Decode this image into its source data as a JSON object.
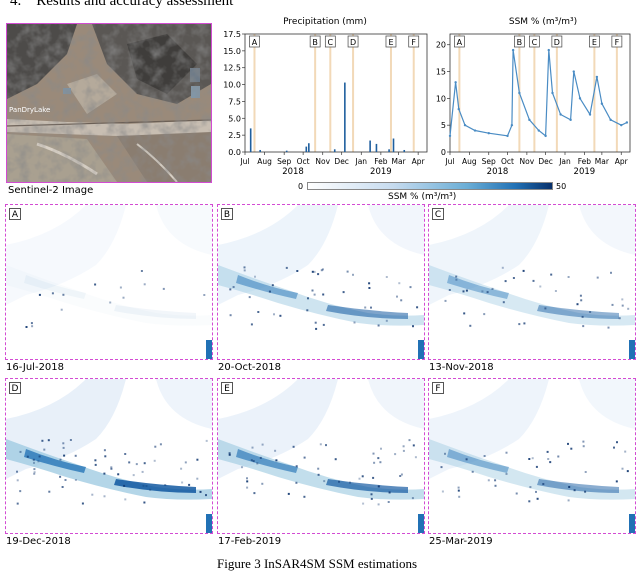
{
  "section": {
    "number": "4.",
    "title": "Results and accuracy assessment"
  },
  "sentinel": {
    "label": "Sentinel-2 Image",
    "place_label": "PanDryLake"
  },
  "precip_chart": {
    "title": "Precipitation (mm)",
    "y_ticks": [
      "0.0",
      "2.5",
      "5.0",
      "7.5",
      "10.0",
      "12.5",
      "15.0",
      "17.5"
    ],
    "x_ticks": [
      "Jul",
      "Aug",
      "Sep",
      "Oct",
      "Nov",
      "Dec",
      "Jan",
      "Feb",
      "Mar",
      "Apr"
    ],
    "year_left": "2018",
    "year_right": "2019"
  },
  "ssm_chart": {
    "title": "SSM % (m³/m³)",
    "y_ticks": [
      "0",
      "5",
      "10",
      "15",
      "20"
    ],
    "x_ticks": [
      "Jul",
      "Aug",
      "Sep",
      "Oct",
      "Nov",
      "Dec",
      "Jan",
      "Feb",
      "Mar",
      "Apr"
    ],
    "year_left": "2018",
    "year_right": "2019"
  },
  "colorbar": {
    "min_label": "0",
    "max_label": "50",
    "title": "SSM % (m³/m³)",
    "low_color": "#ffffff",
    "high_color": "#08306b"
  },
  "marker_labels": [
    "A",
    "B",
    "C",
    "D",
    "E",
    "F"
  ],
  "chart_data": [
    {
      "type": "bar",
      "title": "Precipitation (mm)",
      "x_start": "2018-07-01",
      "x_end": "2019-04-15",
      "ylim": [
        0,
        17.5
      ],
      "series": [
        {
          "values": [
            {
              "date": "2018-07-10",
              "value": 3.5
            },
            {
              "date": "2018-07-25",
              "value": 0.3
            },
            {
              "date": "2018-09-05",
              "value": 0.2
            },
            {
              "date": "2018-10-06",
              "value": 0.8
            },
            {
              "date": "2018-10-10",
              "value": 1.3
            },
            {
              "date": "2018-11-20",
              "value": 0.4
            },
            {
              "date": "2018-12-06",
              "value": 10.3
            },
            {
              "date": "2019-01-15",
              "value": 1.7
            },
            {
              "date": "2019-01-25",
              "value": 1.2
            },
            {
              "date": "2019-02-14",
              "value": 0.4
            },
            {
              "date": "2019-02-21",
              "value": 2.0
            },
            {
              "date": "2019-03-10",
              "value": 0.3
            }
          ]
        }
      ],
      "events": [
        {
          "label": "A",
          "date": "2018-07-16"
        },
        {
          "label": "B",
          "date": "2018-10-20"
        },
        {
          "label": "C",
          "date": "2018-11-13"
        },
        {
          "label": "D",
          "date": "2018-12-19"
        },
        {
          "label": "E",
          "date": "2019-02-17"
        },
        {
          "label": "F",
          "date": "2019-03-25"
        }
      ]
    },
    {
      "type": "line",
      "title": "SSM % (m³/m³)",
      "x_start": "2018-07-01",
      "x_end": "2019-04-15",
      "ylim": [
        0,
        22
      ],
      "series": [
        {
          "points": [
            {
              "date": "2018-07-01",
              "value": 3
            },
            {
              "date": "2018-07-10",
              "value": 13
            },
            {
              "date": "2018-07-15",
              "value": 8
            },
            {
              "date": "2018-07-25",
              "value": 5
            },
            {
              "date": "2018-08-10",
              "value": 4
            },
            {
              "date": "2018-09-01",
              "value": 3.5
            },
            {
              "date": "2018-10-01",
              "value": 3
            },
            {
              "date": "2018-10-08",
              "value": 5
            },
            {
              "date": "2018-10-10",
              "value": 19
            },
            {
              "date": "2018-10-20",
              "value": 11
            },
            {
              "date": "2018-11-05",
              "value": 6
            },
            {
              "date": "2018-11-20",
              "value": 4
            },
            {
              "date": "2018-12-01",
              "value": 3
            },
            {
              "date": "2018-12-06",
              "value": 19
            },
            {
              "date": "2018-12-12",
              "value": 11
            },
            {
              "date": "2018-12-25",
              "value": 7
            },
            {
              "date": "2019-01-10",
              "value": 6
            },
            {
              "date": "2019-01-15",
              "value": 15
            },
            {
              "date": "2019-01-25",
              "value": 10
            },
            {
              "date": "2019-02-10",
              "value": 7
            },
            {
              "date": "2019-02-21",
              "value": 14
            },
            {
              "date": "2019-03-01",
              "value": 9
            },
            {
              "date": "2019-03-15",
              "value": 6
            },
            {
              "date": "2019-04-01",
              "value": 5
            },
            {
              "date": "2019-04-10",
              "value": 5.5
            }
          ]
        }
      ],
      "events": [
        {
          "label": "A",
          "date": "2018-07-16"
        },
        {
          "label": "B",
          "date": "2018-10-20"
        },
        {
          "label": "C",
          "date": "2018-11-13"
        },
        {
          "label": "D",
          "date": "2018-12-19"
        },
        {
          "label": "E",
          "date": "2019-02-17"
        },
        {
          "label": "F",
          "date": "2019-03-25"
        }
      ]
    }
  ],
  "panels": [
    {
      "tag": "A",
      "date": "16-Jul-2018",
      "wetness": 0.05
    },
    {
      "tag": "B",
      "date": "20-Oct-2018",
      "wetness": 0.55
    },
    {
      "tag": "C",
      "date": "13-Nov-2018",
      "wetness": 0.45
    },
    {
      "tag": "D",
      "date": "19-Dec-2018",
      "wetness": 0.85
    },
    {
      "tag": "E",
      "date": "17-Feb-2019",
      "wetness": 0.7
    },
    {
      "tag": "F",
      "date": "25-Mar-2019",
      "wetness": 0.5
    }
  ],
  "caption": "Figure 3 InSAR4SM SSM estimations"
}
